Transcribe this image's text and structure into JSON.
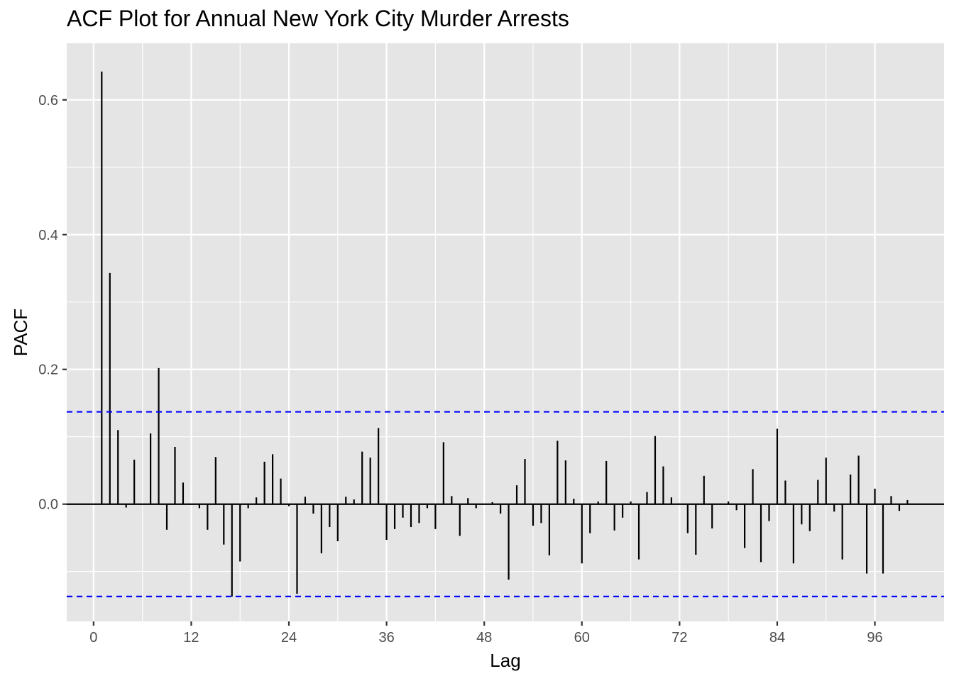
{
  "chart_data": {
    "type": "bar",
    "title": "ACF Plot for Annual New York City Murder Arrests",
    "xlabel": "Lag",
    "ylabel": "PACF",
    "xlim": [
      -3.3,
      104.5
    ],
    "ylim": [
      -0.174,
      0.684
    ],
    "xticks": [
      0,
      12,
      24,
      36,
      48,
      60,
      72,
      84,
      96
    ],
    "xtick_labels": [
      "0",
      "12",
      "24",
      "36",
      "48",
      "60",
      "72",
      "84",
      "96"
    ],
    "yticks": [
      0.0,
      0.2,
      0.4,
      0.6
    ],
    "ytick_labels": [
      "0.0",
      "0.2",
      "0.4",
      "0.6"
    ],
    "grid": true,
    "confidence_bound": 0.137,
    "colors": {
      "panel": "#e5e5e5",
      "grid": "#ffffff",
      "bar": "#000000",
      "bound": "#0000ff"
    },
    "x": [
      1,
      2,
      3,
      4,
      5,
      6,
      7,
      8,
      9,
      10,
      11,
      12,
      13,
      14,
      15,
      16,
      17,
      18,
      19,
      20,
      21,
      22,
      23,
      24,
      25,
      26,
      27,
      28,
      29,
      30,
      31,
      32,
      33,
      34,
      35,
      36,
      37,
      38,
      39,
      40,
      41,
      42,
      43,
      44,
      45,
      46,
      47,
      48,
      49,
      50,
      51,
      52,
      53,
      54,
      55,
      56,
      57,
      58,
      59,
      60,
      61,
      62,
      63,
      64,
      65,
      66,
      67,
      68,
      69,
      70,
      71,
      72,
      73,
      74,
      75,
      76,
      77,
      78,
      79,
      80,
      81,
      82,
      83,
      84,
      85,
      86,
      87,
      88,
      89,
      90,
      91,
      92,
      93,
      94,
      95,
      96,
      97,
      98,
      99,
      100
    ],
    "values": [
      0.642,
      0.343,
      0.11,
      -0.005,
      0.066,
      0.0,
      0.105,
      0.202,
      -0.038,
      0.085,
      0.032,
      0.0,
      -0.006,
      -0.038,
      0.07,
      -0.06,
      -0.137,
      -0.085,
      -0.006,
      0.01,
      0.063,
      0.074,
      0.038,
      -0.003,
      -0.133,
      0.011,
      -0.014,
      -0.073,
      -0.034,
      -0.055,
      0.011,
      0.007,
      0.078,
      0.069,
      0.113,
      -0.053,
      -0.037,
      -0.02,
      -0.034,
      -0.028,
      -0.006,
      -0.037,
      0.092,
      0.012,
      -0.047,
      0.009,
      -0.006,
      0.0,
      0.003,
      -0.014,
      -0.112,
      0.028,
      0.067,
      -0.032,
      -0.028,
      -0.076,
      0.094,
      0.065,
      0.008,
      -0.088,
      -0.043,
      0.004,
      0.064,
      -0.039,
      -0.02,
      0.004,
      -0.082,
      0.018,
      0.101,
      0.056,
      0.01,
      0.001,
      -0.043,
      -0.075,
      0.042,
      -0.036,
      0.001,
      0.004,
      -0.009,
      -0.065,
      0.052,
      -0.086,
      -0.025,
      0.112,
      0.035,
      -0.088,
      -0.03,
      -0.04,
      0.036,
      0.069,
      -0.011,
      -0.082,
      0.044,
      0.072,
      -0.103,
      0.023,
      -0.103,
      0.012,
      -0.01,
      0.006
    ]
  }
}
